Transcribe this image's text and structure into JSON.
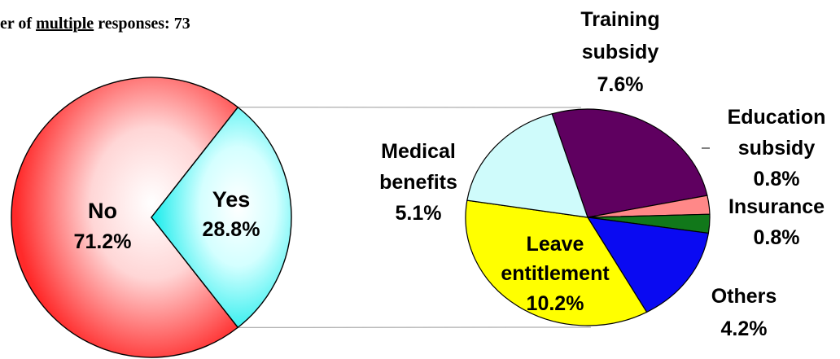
{
  "header": {
    "prefix": "er of ",
    "underlined": "multiple",
    "suffix": " responses: 73"
  },
  "chart_data": [
    {
      "type": "pie",
      "slices": [
        {
          "label": "No",
          "value": 71.2,
          "value_label": "71.2%",
          "color": "#ff3b3b"
        },
        {
          "label": "Yes",
          "value": 28.8,
          "value_label": "28.8%",
          "color": "#3ff2f2"
        }
      ]
    },
    {
      "type": "pie",
      "slices": [
        {
          "label_lines": [
            "Training",
            "subsidy"
          ],
          "value": 7.6,
          "value_label": "7.6%",
          "color": "#5f0060"
        },
        {
          "label_lines": [
            "Education",
            "subsidy"
          ],
          "value": 0.8,
          "value_label": "0.8%",
          "color": "#ff8888"
        },
        {
          "label_lines": [
            "Insurance"
          ],
          "value": 0.8,
          "value_label": "0.8%",
          "color": "#11781a"
        },
        {
          "label_lines": [
            "Others"
          ],
          "value": 4.2,
          "value_label": "4.2%",
          "color": "#0a0af2"
        },
        {
          "label_lines": [
            "Leave",
            "entitlement"
          ],
          "value": 10.2,
          "value_label": "10.2%",
          "color": "#ffff00"
        },
        {
          "label_lines": [
            "Medical",
            "benefits"
          ],
          "value": 5.1,
          "value_label": "5.1%",
          "color": "#cffbfb"
        }
      ]
    }
  ]
}
